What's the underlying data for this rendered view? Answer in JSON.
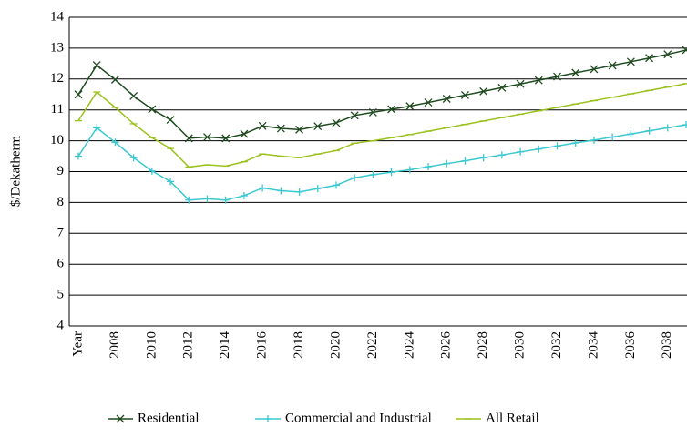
{
  "chart_data": {
    "type": "line",
    "y_label": "$/Dekatherm",
    "categories": [
      "Year",
      null,
      "2008",
      null,
      "2010",
      null,
      "2012",
      null,
      "2014",
      null,
      "2016",
      null,
      "2018",
      null,
      "2020",
      null,
      "2022",
      null,
      "2024",
      null,
      "2026",
      null,
      "2028",
      null,
      "2030",
      null,
      "2032",
      null,
      "2034",
      null,
      "2036",
      null,
      "2038",
      null
    ],
    "series": [
      {
        "name": "Residential",
        "color": "#1f4a1f",
        "marker": "x",
        "values": [
          11.5,
          12.45,
          11.98,
          11.45,
          11.02,
          10.68,
          10.08,
          10.12,
          10.08,
          10.22,
          10.48,
          10.4,
          10.36,
          10.47,
          10.58,
          10.82,
          10.92,
          11.02,
          11.12,
          11.24,
          11.36,
          11.48,
          11.6,
          11.72,
          11.84,
          11.96,
          12.08,
          12.2,
          12.32,
          12.44,
          12.56,
          12.68,
          12.8,
          12.94
        ]
      },
      {
        "name": "Commercial and Industrial",
        "color": "#3cc8d0",
        "marker": "plus",
        "values": [
          9.5,
          10.42,
          9.95,
          9.45,
          9.02,
          8.68,
          8.08,
          8.12,
          8.08,
          8.22,
          8.47,
          8.38,
          8.34,
          8.45,
          8.56,
          8.8,
          8.9,
          8.98,
          9.06,
          9.16,
          9.26,
          9.35,
          9.45,
          9.54,
          9.64,
          9.73,
          9.83,
          9.93,
          10.02,
          10.12,
          10.22,
          10.32,
          10.42,
          10.52
        ]
      },
      {
        "name": "All Retail",
        "color": "#9cc21e",
        "marker": "dash",
        "values": [
          10.65,
          11.58,
          11.08,
          10.55,
          10.1,
          9.75,
          9.15,
          9.22,
          9.18,
          9.32,
          9.57,
          9.5,
          9.45,
          9.57,
          9.68,
          9.92,
          10.0,
          10.1,
          10.2,
          10.31,
          10.42,
          10.53,
          10.64,
          10.75,
          10.86,
          10.97,
          11.08,
          11.19,
          11.3,
          11.41,
          11.52,
          11.63,
          11.74,
          11.85
        ]
      }
    ],
    "ylim": [
      4,
      14
    ],
    "yticks": [
      4,
      5,
      6,
      7,
      8,
      9,
      10,
      11,
      12,
      13,
      14
    ],
    "grid": true,
    "legend": "bottom"
  }
}
